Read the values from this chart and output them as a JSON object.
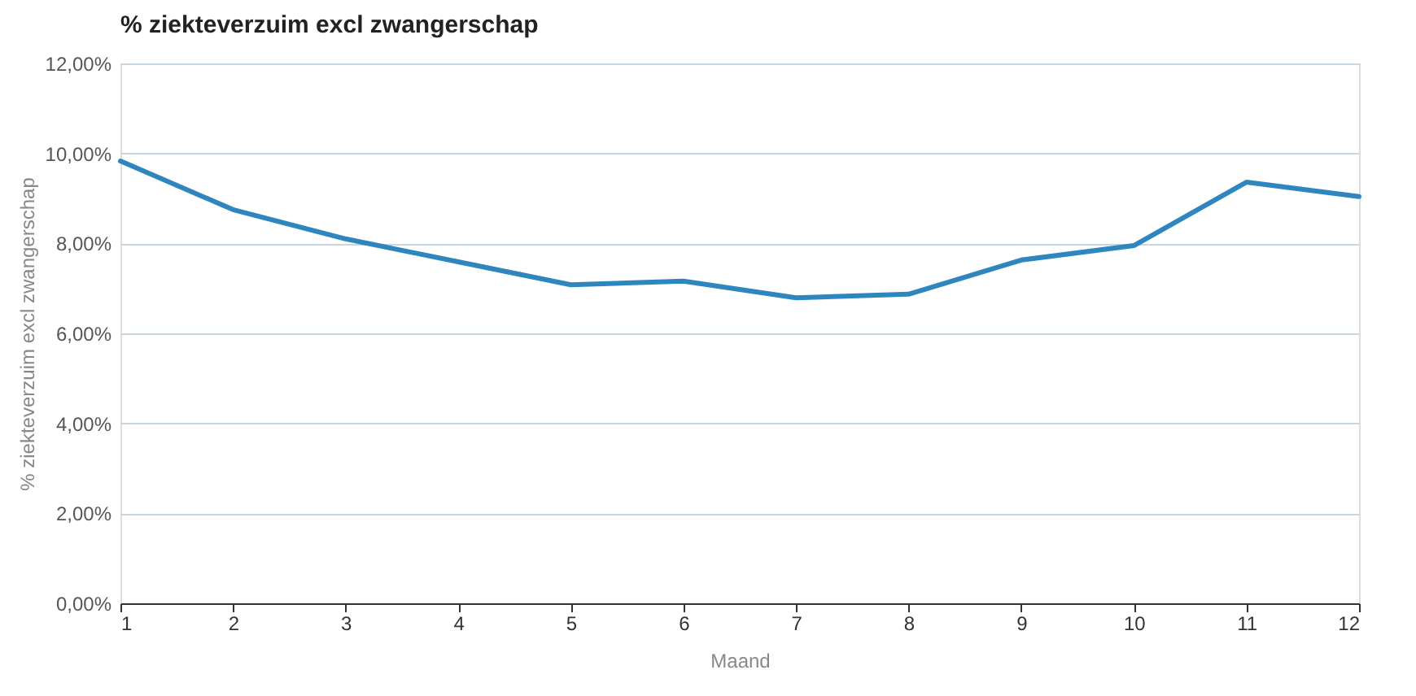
{
  "chart_data": {
    "type": "line",
    "title": "% ziekteverzuim excl zwangerschap",
    "xlabel": "Maand",
    "ylabel": "% ziekteverzuim excl zwangerschap",
    "x": [
      1,
      2,
      3,
      4,
      5,
      6,
      7,
      8,
      9,
      10,
      11,
      12
    ],
    "series": [
      {
        "color": "#2f86be",
        "values": [
          9.83,
          8.75,
          8.1,
          7.59,
          7.08,
          7.16,
          6.79,
          6.87,
          7.63,
          7.95,
          9.36,
          9.04
        ]
      }
    ],
    "xlim": [
      1,
      12
    ],
    "xticks": [
      1,
      2,
      3,
      4,
      5,
      6,
      7,
      8,
      9,
      10,
      11,
      12
    ],
    "ylim": [
      0,
      12
    ],
    "yticks": [
      {
        "value": 0,
        "label": "0,00%"
      },
      {
        "value": 2,
        "label": "2,00%"
      },
      {
        "value": 4,
        "label": "4,00%"
      },
      {
        "value": 6,
        "label": "6,00%"
      },
      {
        "value": 8,
        "label": "8,00%"
      },
      {
        "value": 10,
        "label": "10,00%"
      },
      {
        "value": 12,
        "label": "12,00%"
      }
    ],
    "grid": "y",
    "legend": false,
    "marker": "none",
    "line_style": "solid"
  }
}
